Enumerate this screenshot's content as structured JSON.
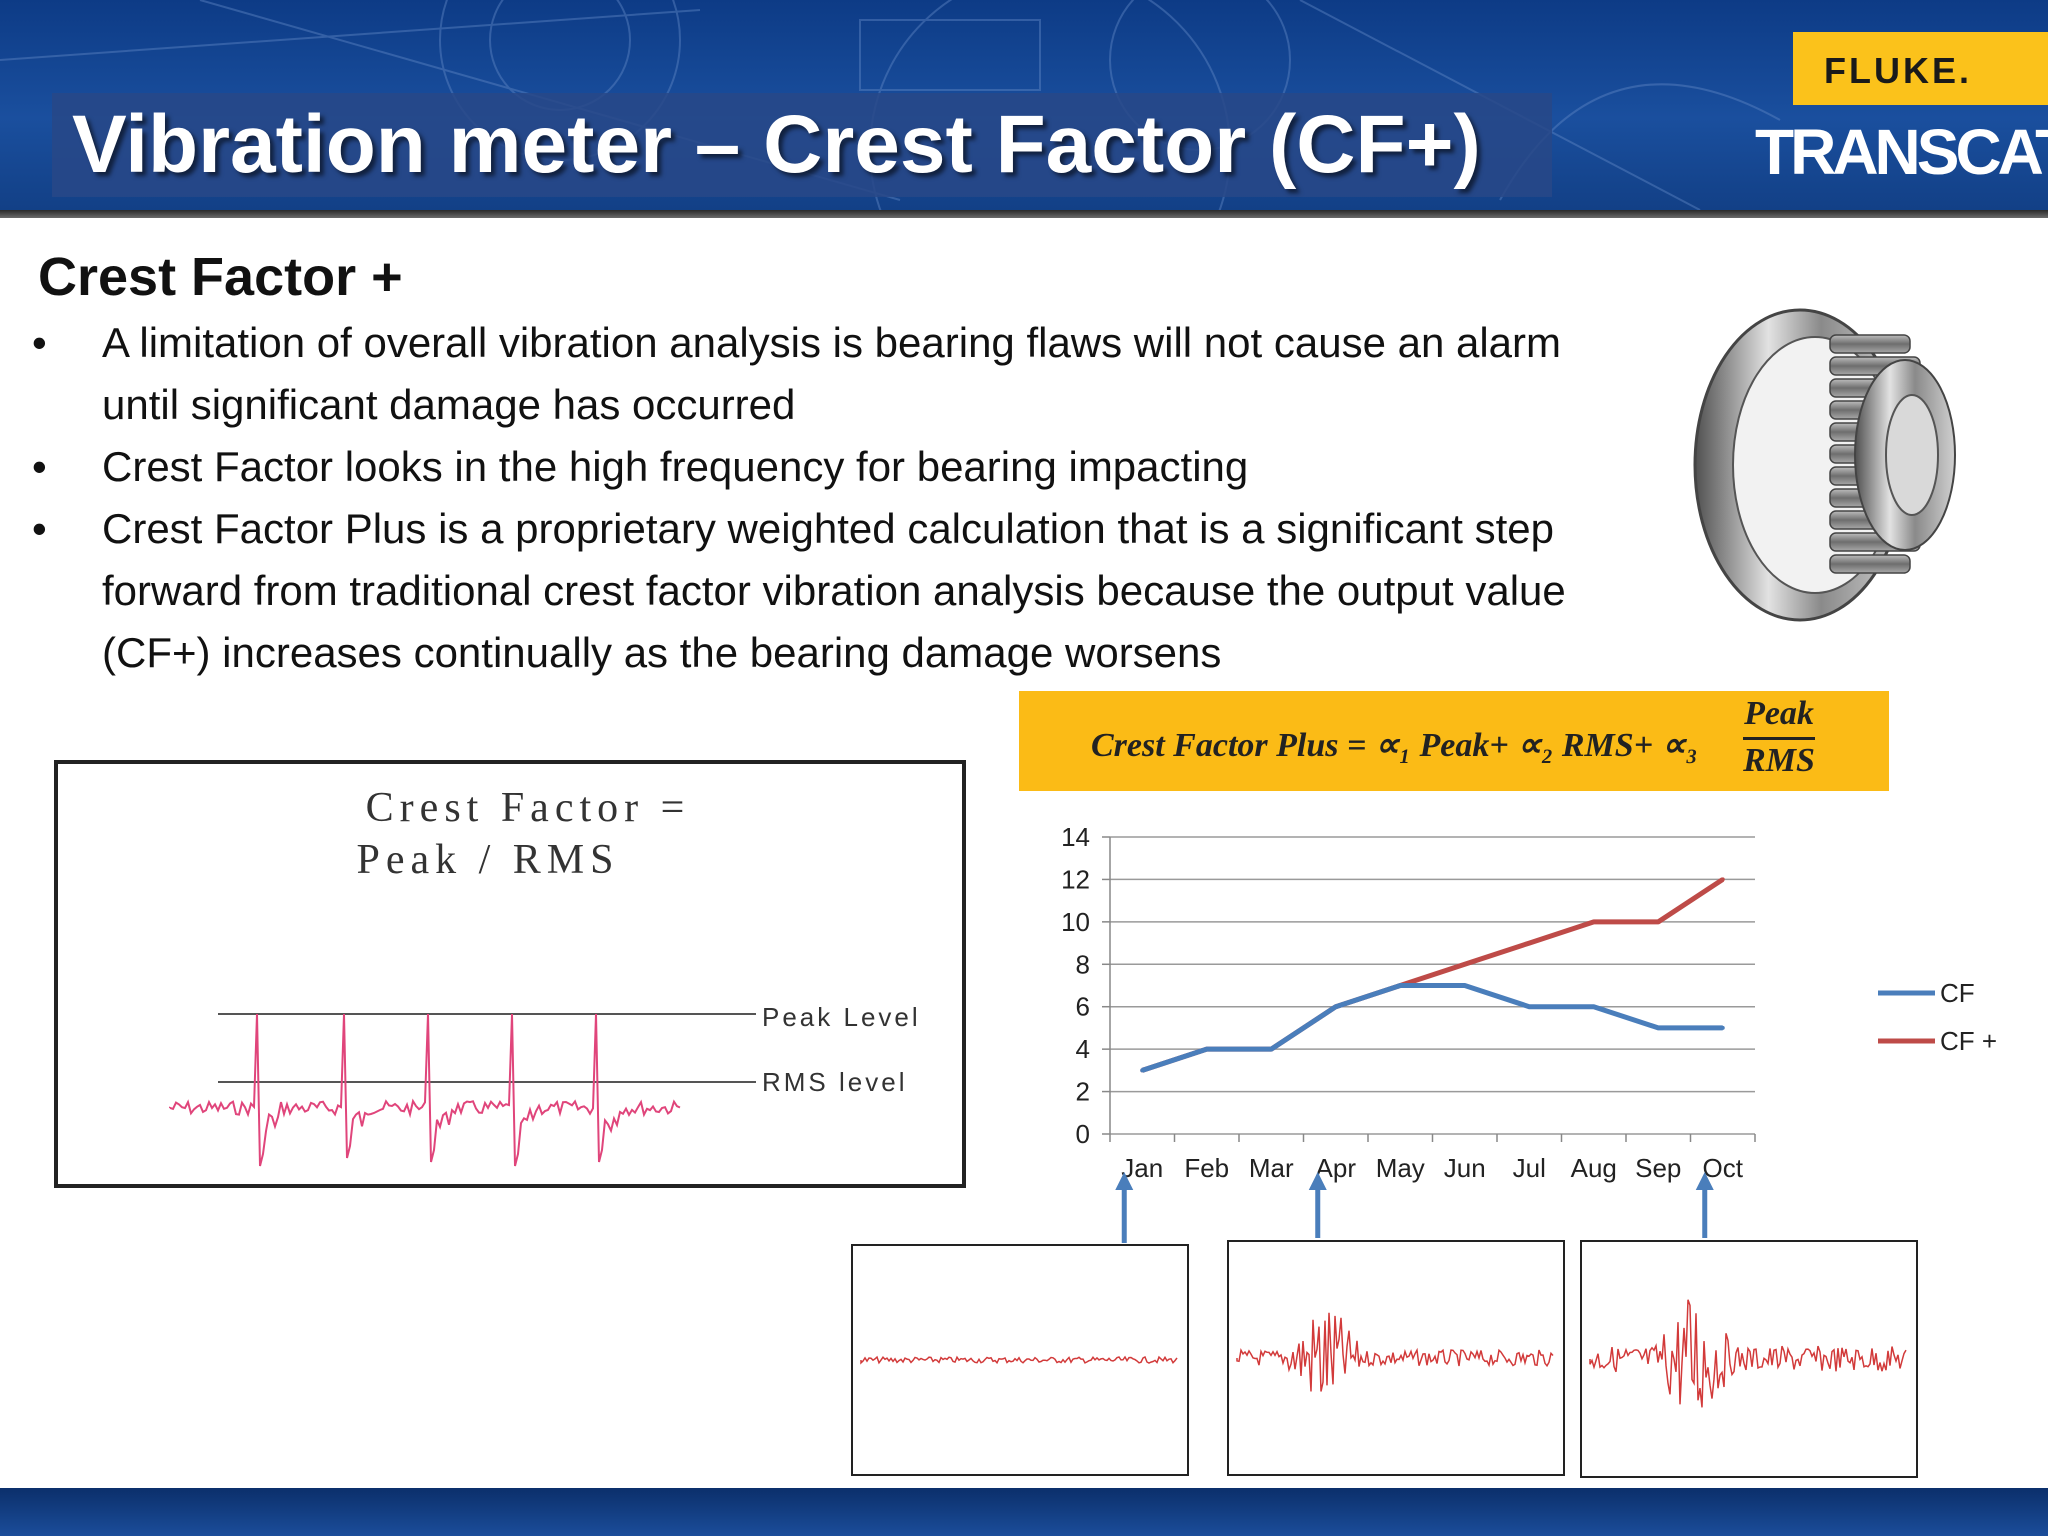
{
  "slide": {
    "title": "Vibration meter – Crest Factor (CF+)",
    "subtitle": "Crest Factor +",
    "bullet_marker": "•",
    "bullets": [
      "A limitation of overall vibration analysis is bearing flaws will not cause an alarm until significant damage has occurred",
      "Crest Factor looks in the high frequency for bearing impacting",
      "Crest Factor Plus is a proprietary weighted calculation that is a significant step forward from traditional crest factor vibration analysis because the output value (CF+) increases continually as the bearing damage worsens"
    ]
  },
  "logos": {
    "fluke": "FLUKE.",
    "transcat": "TRANSCAT",
    "transcat_mark": "®"
  },
  "crest_factor_diagram": {
    "formula_line1": "Crest Factor =",
    "formula_line2": "Peak / RMS",
    "peak_label": "Peak Level",
    "rms_label": "RMS level"
  },
  "equation": {
    "text": "Crest Factor Plus = ∝₁ Peak+ ∝₂ RMS+ ∝₃",
    "fraction_numerator": "Peak",
    "fraction_denominator": "RMS"
  },
  "colors": {
    "header_blue": "#1a4f9e",
    "fluke_yellow": "#fbc21b",
    "equation_yellow": "#fbbb16",
    "cf_series": "#4a7ebb",
    "cfplus_series": "#be4b48",
    "waveform_pink": "#e0457b",
    "arrow_blue": "#4a7ebb"
  },
  "icons": [
    "bearing-image",
    "up-arrow-icon"
  ],
  "chart_data": {
    "type": "line",
    "categories": [
      "Jan",
      "Feb",
      "Mar",
      "Apr",
      "May",
      "Jun",
      "Jul",
      "Aug",
      "Sep",
      "Oct"
    ],
    "series": [
      {
        "name": "CF",
        "values": [
          3,
          4,
          4,
          6,
          7,
          7,
          6,
          6,
          5,
          5
        ]
      },
      {
        "name": "CF +",
        "values": [
          3,
          4,
          4,
          6,
          7,
          8,
          9,
          10,
          10,
          12
        ]
      }
    ],
    "ylim": [
      0,
      14
    ],
    "yticks": [
      0,
      2,
      4,
      6,
      8,
      10,
      12,
      14
    ],
    "grid": true,
    "legend": "right",
    "title": "",
    "xlabel": "",
    "ylabel": ""
  }
}
